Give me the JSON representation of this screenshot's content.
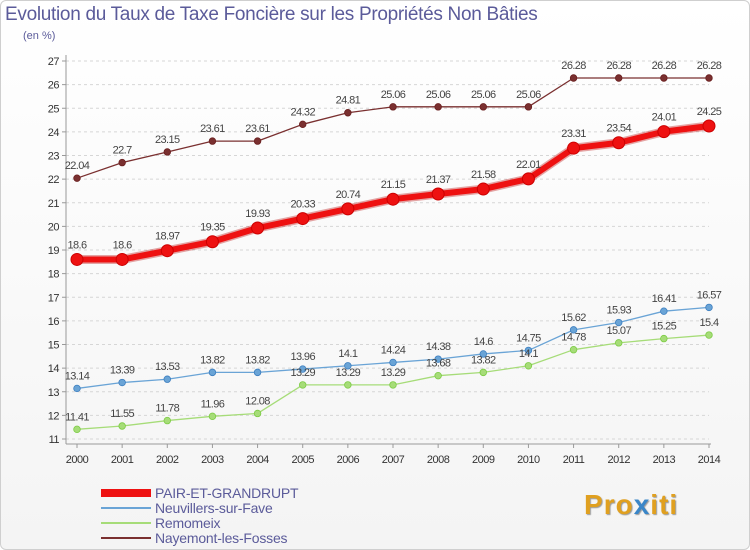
{
  "title": "Evolution du Taux de Taxe Foncière sur les Propriétés Non Bâties",
  "unit_label": "(en %)",
  "logo": {
    "text": "Proxiti",
    "colors": [
      "#e0a020",
      "#e0a020",
      "#e0a020",
      "#3a86c8",
      "#e0a020",
      "#e0a020",
      "#e0a020"
    ]
  },
  "chart_data": {
    "type": "line",
    "title": "Evolution du Taux de Taxe Foncière sur les Propriétés Non Bâties",
    "ylabel": "(en %)",
    "xlabel": "",
    "ylim": [
      11,
      27
    ],
    "yticks": [
      "11",
      "12",
      "13",
      "14",
      "15",
      "16",
      "17",
      "18",
      "19",
      "20",
      "21",
      "22",
      "23",
      "24",
      "25",
      "26",
      "27"
    ],
    "categories": [
      "2000",
      "2001",
      "2002",
      "2003",
      "2004",
      "2005",
      "2006",
      "2007",
      "2008",
      "2009",
      "2010",
      "2011",
      "2012",
      "2013",
      "2014"
    ],
    "grid": "horizontal dashed",
    "legend_position": "bottom-left",
    "series": [
      {
        "name": "PAIR-ET-GRANDRUPT",
        "color": "#ee1111",
        "emphasis": "thick",
        "values": [
          18.6,
          18.6,
          18.97,
          19.35,
          19.93,
          20.33,
          20.74,
          21.15,
          21.37,
          21.58,
          22.01,
          23.31,
          23.54,
          24.01,
          24.25
        ],
        "labels": [
          "18.6",
          "18.6",
          "18.97",
          "19.35",
          "19.93",
          "20.33",
          "20.74",
          "21.15",
          "21.37",
          "21.58",
          "22.01",
          "23.31",
          "23.54",
          "24.01",
          "24.25"
        ]
      },
      {
        "name": "Neuvillers-sur-Fave",
        "color": "#6aa4d6",
        "marker": "#3d7fc0",
        "values": [
          13.14,
          13.39,
          13.53,
          13.82,
          13.82,
          13.96,
          14.1,
          14.24,
          14.38,
          14.6,
          14.75,
          15.62,
          15.93,
          16.41,
          16.57
        ],
        "labels": [
          "13.14",
          "13.39",
          "13.53",
          "13.82",
          "13.82",
          "13.96",
          "14.1",
          "14.24",
          "14.38",
          "14.6",
          "14.75",
          "15.62",
          "15.93",
          "16.41",
          "16.57"
        ]
      },
      {
        "name": "Remomeix",
        "color": "#a6dc78",
        "marker": "#7ccc44",
        "values": [
          11.41,
          11.55,
          11.78,
          11.96,
          12.08,
          13.29,
          13.29,
          13.29,
          13.68,
          13.82,
          14.1,
          14.78,
          15.07,
          15.25,
          15.4
        ],
        "labels": [
          "11.41",
          "11.55",
          "11.78",
          "11.96",
          "12.08",
          "13.29",
          "13.29",
          "13.29",
          "13.68",
          "13.82",
          "14.1",
          "14.78",
          "15.07",
          "15.25",
          "15.4"
        ]
      },
      {
        "name": "Nayemont-les-Fosses",
        "color": "#7a3030",
        "marker": "#6a1f1f",
        "values": [
          22.04,
          22.7,
          23.15,
          23.61,
          23.61,
          24.32,
          24.81,
          25.06,
          25.06,
          25.06,
          25.06,
          26.28,
          26.28,
          26.28,
          26.28
        ],
        "labels": [
          "22.04",
          "22.7",
          "23.15",
          "23.61",
          "23.61",
          "24.32",
          "24.81",
          "25.06",
          "25.06",
          "25.06",
          "25.06",
          "26.28",
          "26.28",
          "26.28",
          "26.28"
        ]
      }
    ]
  }
}
